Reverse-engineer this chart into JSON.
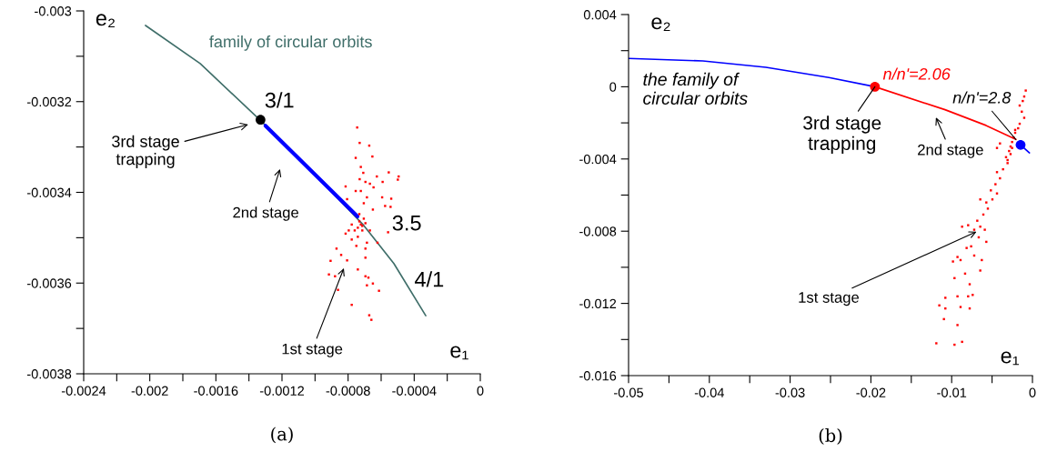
{
  "chart_data": [
    {
      "type": "line",
      "title": "(a)",
      "xlabel": "e₁",
      "ylabel": "e₂",
      "xlim": [
        -0.0024,
        0
      ],
      "ylim": [
        -0.0038,
        -0.003
      ],
      "xticks": [
        -0.0024,
        {
          "value": -0.0022,
          "label": null
        },
        -0.002,
        {
          "value": -0.0018,
          "label": null
        },
        -0.0016,
        {
          "value": -0.0014,
          "label": null
        },
        -0.0012,
        {
          "value": -0.001,
          "label": null
        },
        -0.0008,
        {
          "value": -0.0006,
          "label": null
        },
        -0.0004,
        {
          "value": -0.0002,
          "label": null
        },
        0
      ],
      "yticks": [
        -0.0038,
        {
          "value": -0.0037,
          "label": null
        },
        -0.0036,
        {
          "value": -0.0035,
          "label": null
        },
        -0.0034,
        {
          "value": -0.0033,
          "label": null
        },
        -0.0032,
        {
          "value": -0.0031,
          "label": null
        },
        -0.003
      ],
      "series": [
        {
          "name": "family of circular orbits",
          "color": "#3f6e69",
          "x": [
            -0.002026,
            -0.001695,
            -0.001332,
            -0.001035,
            -0.000705,
            -0.000523,
            -0.00033
          ],
          "values": [
            -0.003032,
            -0.003116,
            -0.003241,
            -0.003347,
            -0.003473,
            -0.003557,
            -0.003672
          ]
        },
        {
          "color": "#0000ff",
          "x": [
            -0.0013,
            -0.000743
          ],
          "values": [
            -0.003253,
            -0.003453
          ]
        },
        {
          "type": "scatter",
          "marker": "square",
          "color": "#ff0000",
          "x": [
            -0.000745,
            -0.00073,
            -0.000672,
            -0.000754,
            -0.000653,
            -0.000723,
            -0.000708,
            -0.00073,
            -0.000554,
            -0.000494,
            -0.000499,
            -0.000626,
            -0.000591,
            -0.000815,
            -0.000695,
            -0.000668,
            -0.000646,
            -0.000754,
            -0.000723,
            -0.000686,
            -0.000594,
            -0.000539,
            -0.000576,
            -0.000543,
            -0.000806,
            -0.00065,
            -0.000705,
            -0.000778,
            -0.000796,
            -0.000815,
            -0.000558,
            -0.000622,
            -0.000686,
            -0.00075,
            -0.00087,
            -0.000842,
            -0.000906,
            -0.000806,
            -0.000695,
            -0.000916,
            -0.000879,
            -0.000861,
            -0.000741,
            -0.000695,
            -0.000677,
            -0.00065,
            -0.000686,
            -0.000613,
            -0.000778,
            -0.000672,
            -0.000659,
            -0.000723,
            -0.000714,
            -0.000741,
            -0.000705,
            -0.000732,
            -0.00076,
            -0.000668,
            -0.000778,
            -0.000695,
            -0.000732,
            -0.000714,
            -0.000695,
            -0.000741
          ],
          "values": [
            -0.003257,
            -0.003291,
            -0.003297,
            -0.003324,
            -0.003321,
            -0.003344,
            -0.003357,
            -0.003371,
            -0.003356,
            -0.003365,
            -0.003372,
            -0.003365,
            -0.003377,
            -0.003387,
            -0.003377,
            -0.003381,
            -0.003389,
            -0.003397,
            -0.003397,
            -0.003411,
            -0.003411,
            -0.003414,
            -0.00343,
            -0.003432,
            -0.003415,
            -0.003438,
            -0.003424,
            -0.003471,
            -0.003484,
            -0.003491,
            -0.003488,
            -0.003511,
            -0.003511,
            -0.003518,
            -0.003524,
            -0.003538,
            -0.003551,
            -0.00355,
            -0.003544,
            -0.003581,
            -0.003585,
            -0.003615,
            -0.00357,
            -0.003585,
            -0.003588,
            -0.003601,
            -0.003605,
            -0.003617,
            -0.003648,
            -0.003671,
            -0.003681,
            -0.003471,
            -0.003484,
            -0.003498,
            -0.003458,
            -0.003448,
            -0.003484,
            -0.003484,
            -0.003504,
            -0.003524,
            -0.003464,
            -0.003474,
            -0.003468,
            -0.003478
          ]
        },
        {
          "type": "scatter",
          "marker": "circle",
          "color": "#000000",
          "x": [
            -0.00133
          ],
          "values": [
            -0.00324
          ]
        }
      ],
      "annotations": [
        {
          "text": "3/1",
          "x": -0.00133,
          "y": -0.00324
        },
        "3rd stage\ntrapping",
        "2nd stage",
        {
          "text": "3.5",
          "x": -0.00072,
          "y": -0.00348
        },
        {
          "text": "4/1",
          "x": -0.000523,
          "y": -0.003557
        },
        "1st stage"
      ]
    },
    {
      "type": "line",
      "title": "(b)",
      "xlabel": "e₁",
      "ylabel": "e₂",
      "xlim": [
        -0.05,
        0
      ],
      "ylim": [
        -0.016,
        0.004
      ],
      "xticks": [
        -0.05,
        {
          "value": -0.045,
          "label": null
        },
        -0.04,
        {
          "value": -0.035,
          "label": null
        },
        -0.03,
        {
          "value": -0.025,
          "label": null
        },
        -0.02,
        {
          "value": -0.015,
          "label": null
        },
        -0.01,
        {
          "value": -0.005,
          "label": null
        },
        0
      ],
      "yticks": [
        -0.016,
        {
          "value": -0.014,
          "label": null
        },
        -0.012,
        {
          "value": -0.01,
          "label": null
        },
        -0.008,
        {
          "value": -0.006,
          "label": null
        },
        -0.004,
        {
          "value": -0.002,
          "label": null
        },
        0,
        {
          "value": 0.002,
          "label": null
        },
        0.004
      ],
      "series": [
        {
          "color": "#0000ff",
          "x": [
            -0.05,
            -0.0408,
            -0.033,
            -0.0252,
            -0.0195,
            null,
            -0.00147,
            -0.00037
          ],
          "values": [
            0.00157,
            0.00143,
            0.00108,
            0.00051,
            0,
            null,
            -0.00322,
            -0.00366
          ]
        },
        {
          "color": "#ff0000",
          "x": [
            -0.0195,
            -0.01082,
            -0.00575,
            -0.00205
          ],
          "values": [
            0,
            -0.00127,
            -0.00214,
            -0.00292
          ]
        },
        {
          "type": "scatter",
          "marker": "square",
          "color": "#ff0000",
          "x": [
            -0.00083,
            -0.0012,
            -0.00132,
            -0.00102,
            -0.00158,
            -0.00177,
            -0.00214,
            -0.00233,
            -0.00252,
            -0.00271,
            -0.00289,
            -0.00327,
            -0.00402,
            -0.00439,
            -0.00308,
            -0.00364,
            -0.00439,
            -0.00402,
            -0.00458,
            -0.00515,
            -0.00439,
            -0.00496,
            -0.00571,
            -0.00646,
            -0.00552,
            -0.00608,
            -0.00683,
            -0.00646,
            -0.00721,
            -0.00796,
            -0.00871,
            -0.0059,
            -0.00665,
            -0.00571,
            -0.00759,
            -0.00815,
            -0.00721,
            -0.00627,
            -0.00928,
            -0.00984,
            -0.0089,
            -0.00646,
            -0.00965,
            -0.00834,
            -0.00777,
            -0.00928,
            -0.0074,
            -0.00796,
            -0.01078,
            -0.01153,
            -0.0089,
            -0.01078,
            -0.00777,
            -0.01096,
            -0.00928,
            -0.0119,
            -0.00965,
            -0.00871,
            -0.00252,
            -0.00271,
            -0.00308,
            -0.00214,
            -0.00158,
            -0.00102
          ],
          "values": [
            -0.00021,
            -0.00079,
            -0.00138,
            -0.00172,
            -0.00205,
            -0.0023,
            -0.00255,
            -0.00281,
            -0.00306,
            -0.00331,
            -0.00356,
            -0.0039,
            -0.00314,
            -0.00339,
            -0.00423,
            -0.00457,
            -0.00473,
            -0.00507,
            -0.0054,
            -0.00574,
            -0.00591,
            -0.00624,
            -0.00641,
            -0.00624,
            -0.00675,
            -0.00708,
            -0.00742,
            -0.00775,
            -0.00792,
            -0.00767,
            -0.00775,
            -0.00792,
            -0.00834,
            -0.00859,
            -0.00884,
            -0.00893,
            -0.00935,
            -0.0096,
            -0.00943,
            -0.00968,
            -0.0096,
            -0.01018,
            -0.0106,
            -0.01035,
            -0.01094,
            -0.01161,
            -0.01153,
            -0.01161,
            -0.01169,
            -0.01211,
            -0.0122,
            -0.01228,
            -0.01228,
            -0.01287,
            -0.0132,
            -0.01421,
            -0.01429,
            -0.01413,
            -0.00339,
            -0.00373,
            -0.00406,
            -0.00239,
            -0.00104,
            -0.00054
          ]
        },
        {
          "type": "scatter",
          "marker": "circle",
          "color": "#ff0000",
          "x": [
            -0.0195
          ],
          "values": [
            0
          ]
        },
        {
          "type": "scatter",
          "marker": "circle",
          "color": "#0000ff",
          "x": [
            -0.00147
          ],
          "values": [
            -0.00322
          ]
        }
      ],
      "annotations": [
        "the family of\ncircular orbits",
        {
          "text": "n/n'=2.06",
          "x": -0.0195,
          "y": 0
        },
        {
          "text": "n/n'=2.8",
          "x": -0.00205,
          "y": -0.00292
        },
        {
          "text": "3rd stage\ntrapping",
          "x": -0.0195,
          "y": 0
        },
        "2nd stage",
        {
          "text": "1st stage",
          "x": -0.00693,
          "y": -0.00803
        }
      ]
    }
  ]
}
